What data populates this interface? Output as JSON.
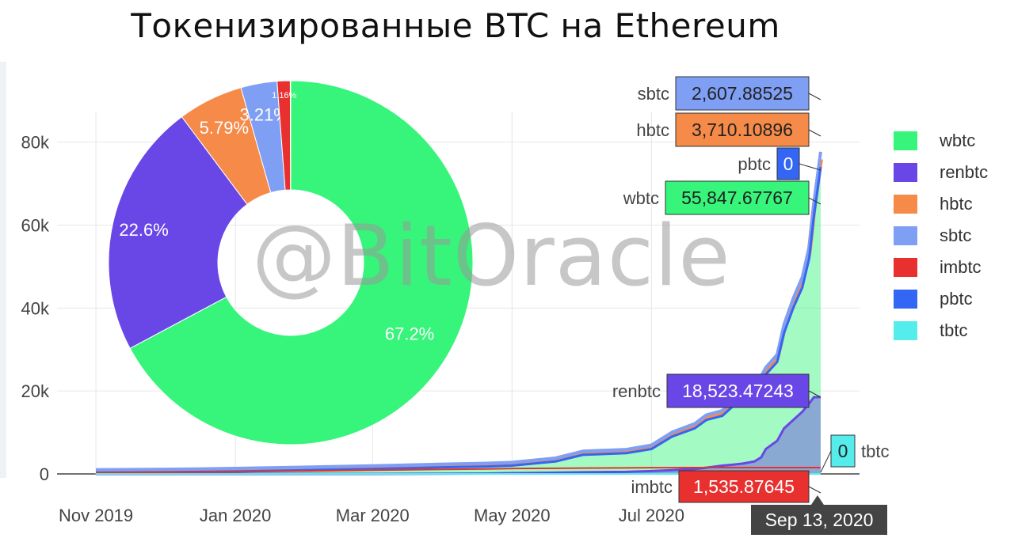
{
  "title": "Токенизированные BTC на Ethereum",
  "watermark": "@BitOracle",
  "colors": {
    "wbtc": "#36f57a",
    "renbtc": "#6947e6",
    "hbtc": "#f68a48",
    "sbtc": "#7f9ff5",
    "imbtc": "#e8312f",
    "pbtc": "#3366f5",
    "tbtc": "#55ecec",
    "tooltip_date_bg": "#444444"
  },
  "chart_data": [
    {
      "type": "area",
      "x_ticks": [
        "Nov 2019",
        "Jan 2020",
        "Mar 2020",
        "May 2020",
        "Jul 2020"
      ],
      "y_ticks": [
        "0",
        "20k",
        "40k",
        "60k",
        "80k"
      ],
      "ylim": [
        0,
        95000
      ],
      "xlim": [
        "2019-10-15",
        "2020-09-30"
      ],
      "grid": true,
      "legend": {
        "position": "right",
        "entries": [
          "wbtc",
          "renbtc",
          "hbtc",
          "sbtc",
          "imbtc",
          "pbtc",
          "tbtc"
        ]
      },
      "hover_date": "Sep 13, 2020",
      "hover_labels": [
        {
          "series": "sbtc",
          "value": "2,607.88525"
        },
        {
          "series": "hbtc",
          "value": "3,710.10896"
        },
        {
          "series": "pbtc",
          "value": "0"
        },
        {
          "series": "wbtc",
          "value": "55,847.67767"
        },
        {
          "series": "renbtc",
          "value": "18,523.47243"
        },
        {
          "series": "tbtc",
          "value": "0"
        },
        {
          "series": "imbtc",
          "value": "1,535.87645"
        }
      ],
      "stacked_total_series": {
        "dates": [
          "2019-11-01",
          "2019-12-01",
          "2020-01-01",
          "2020-02-01",
          "2020-03-01",
          "2020-04-01",
          "2020-04-20",
          "2020-05-01",
          "2020-05-20",
          "2020-06-01",
          "2020-06-20",
          "2020-07-01",
          "2020-07-10",
          "2020-07-20",
          "2020-07-25",
          "2020-08-01",
          "2020-08-05",
          "2020-08-10",
          "2020-08-15",
          "2020-08-18",
          "2020-08-20",
          "2020-08-25",
          "2020-08-28",
          "2020-09-01",
          "2020-09-05",
          "2020-09-08",
          "2020-09-10",
          "2020-09-13"
        ],
        "wbtc_top": [
          300,
          400,
          600,
          900,
          1200,
          1600,
          1800,
          2000,
          3000,
          4600,
          5000,
          6000,
          9000,
          11000,
          13000,
          14000,
          16000,
          18000,
          20000,
          22000,
          24000,
          27000,
          34000,
          40000,
          45000,
          52000,
          62000,
          74000
        ],
        "renbtc": [
          0,
          0,
          0,
          0,
          0,
          50,
          100,
          200,
          300,
          400,
          500,
          700,
          900,
          1200,
          1500,
          2000,
          2200,
          2500,
          3000,
          4000,
          6000,
          8000,
          11000,
          13000,
          15000,
          17000,
          18500,
          18523.47
        ],
        "imbtc": [
          300,
          400,
          500,
          700,
          900,
          1100,
          1200,
          1300,
          1350,
          1400,
          1450,
          1500,
          1500,
          1520,
          1530,
          1535,
          1535,
          1535,
          1535,
          1535,
          1535,
          1535,
          1535,
          1535,
          1535,
          1535,
          1535,
          1535.88
        ]
      }
    },
    {
      "type": "pie",
      "hole": true,
      "slices": [
        {
          "name": "wbtc",
          "percent": 67.2,
          "label": "67.2%"
        },
        {
          "name": "renbtc",
          "percent": 22.6,
          "label": "22.6%"
        },
        {
          "name": "hbtc",
          "percent": 5.79,
          "label": "5.79%"
        },
        {
          "name": "sbtc",
          "percent": 3.21,
          "label": "3.21%"
        },
        {
          "name": "imbtc",
          "percent": 1.16,
          "label": "1.16%"
        },
        {
          "name": "tbtc",
          "percent": 0.04,
          "label": ""
        }
      ]
    }
  ]
}
